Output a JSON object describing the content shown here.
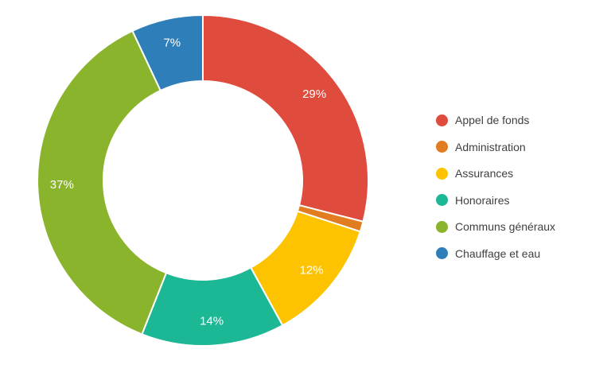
{
  "chart_data": {
    "type": "pie",
    "subtype": "donut",
    "start_angle_deg": 0,
    "direction": "clockwise",
    "categories": [
      "Appel de fonds",
      "Administration",
      "Assurances",
      "Honoraires",
      "Communs généraux",
      "Chauffage et eau"
    ],
    "values": [
      29,
      1,
      12,
      14,
      37,
      7
    ],
    "slice_labels": [
      "29%",
      "",
      "12%",
      "14%",
      "37%",
      "7%"
    ],
    "colors": [
      "#df4b3c",
      "#e17c20",
      "#fdc300",
      "#1cb795",
      "#8bb42d",
      "#2e7fb9"
    ],
    "slice_label_color": "#ffffff",
    "slice_border_color": "#ffffff",
    "legend_position": "right",
    "legend_text_color": "#3f3f3f",
    "inner_radius_ratio": 0.6,
    "background_color": "#ffffff"
  }
}
